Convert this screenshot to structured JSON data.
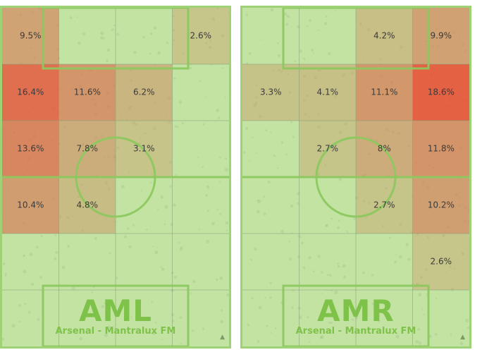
{
  "chart_data": [
    {
      "type": "heatmap",
      "title": "AML",
      "subtitle": "Arsenal - Mantralux FM",
      "columns": 4,
      "rows": 6,
      "cells": [
        {
          "row": 0,
          "col": 0,
          "value": 9.5,
          "label": "9.5%"
        },
        {
          "row": 0,
          "col": 1,
          "value": 0,
          "label": ""
        },
        {
          "row": 0,
          "col": 2,
          "value": 0,
          "label": ""
        },
        {
          "row": 0,
          "col": 3,
          "value": 2.6,
          "label": "2.6%"
        },
        {
          "row": 1,
          "col": 0,
          "value": 16.4,
          "label": "16.4%"
        },
        {
          "row": 1,
          "col": 1,
          "value": 11.6,
          "label": "11.6%"
        },
        {
          "row": 1,
          "col": 2,
          "value": 6.2,
          "label": "6.2%"
        },
        {
          "row": 1,
          "col": 3,
          "value": 0,
          "label": ""
        },
        {
          "row": 2,
          "col": 0,
          "value": 13.6,
          "label": "13.6%"
        },
        {
          "row": 2,
          "col": 1,
          "value": 7.8,
          "label": "7.8%"
        },
        {
          "row": 2,
          "col": 2,
          "value": 3.1,
          "label": "3.1%"
        },
        {
          "row": 2,
          "col": 3,
          "value": 0,
          "label": ""
        },
        {
          "row": 3,
          "col": 0,
          "value": 10.4,
          "label": "10.4%"
        },
        {
          "row": 3,
          "col": 1,
          "value": 4.8,
          "label": "4.8%"
        },
        {
          "row": 3,
          "col": 2,
          "value": 0,
          "label": ""
        },
        {
          "row": 3,
          "col": 3,
          "value": 0,
          "label": ""
        },
        {
          "row": 4,
          "col": 0,
          "value": 0,
          "label": ""
        },
        {
          "row": 4,
          "col": 1,
          "value": 0,
          "label": ""
        },
        {
          "row": 4,
          "col": 2,
          "value": 0,
          "label": ""
        },
        {
          "row": 4,
          "col": 3,
          "value": 0,
          "label": ""
        },
        {
          "row": 5,
          "col": 0,
          "value": 0,
          "label": ""
        },
        {
          "row": 5,
          "col": 1,
          "value": 0,
          "label": ""
        },
        {
          "row": 5,
          "col": 2,
          "value": 0,
          "label": ""
        },
        {
          "row": 5,
          "col": 3,
          "value": 0,
          "label": ""
        }
      ]
    },
    {
      "type": "heatmap",
      "title": "AMR",
      "subtitle": "Arsenal - Mantralux FM",
      "columns": 4,
      "rows": 6,
      "cells": [
        {
          "row": 0,
          "col": 0,
          "value": 0,
          "label": ""
        },
        {
          "row": 0,
          "col": 1,
          "value": 0,
          "label": ""
        },
        {
          "row": 0,
          "col": 2,
          "value": 4.2,
          "label": "4.2%"
        },
        {
          "row": 0,
          "col": 3,
          "value": 9.9,
          "label": "9.9%"
        },
        {
          "row": 1,
          "col": 0,
          "value": 3.3,
          "label": "3.3%"
        },
        {
          "row": 1,
          "col": 1,
          "value": 4.1,
          "label": "4.1%"
        },
        {
          "row": 1,
          "col": 2,
          "value": 11.1,
          "label": "11.1%"
        },
        {
          "row": 1,
          "col": 3,
          "value": 18.6,
          "label": "18.6%"
        },
        {
          "row": 2,
          "col": 0,
          "value": 0,
          "label": ""
        },
        {
          "row": 2,
          "col": 1,
          "value": 2.7,
          "label": "2.7%"
        },
        {
          "row": 2,
          "col": 2,
          "value": 8,
          "label": "8%"
        },
        {
          "row": 2,
          "col": 3,
          "value": 11.8,
          "label": "11.8%"
        },
        {
          "row": 3,
          "col": 0,
          "value": 0,
          "label": ""
        },
        {
          "row": 3,
          "col": 1,
          "value": 0,
          "label": ""
        },
        {
          "row": 3,
          "col": 2,
          "value": 2.7,
          "label": "2.7%"
        },
        {
          "row": 3,
          "col": 3,
          "value": 10.2,
          "label": "10.2%"
        },
        {
          "row": 4,
          "col": 0,
          "value": 0,
          "label": ""
        },
        {
          "row": 4,
          "col": 1,
          "value": 0,
          "label": ""
        },
        {
          "row": 4,
          "col": 2,
          "value": 0,
          "label": ""
        },
        {
          "row": 4,
          "col": 3,
          "value": 2.6,
          "label": "2.6%"
        },
        {
          "row": 5,
          "col": 0,
          "value": 0,
          "label": ""
        },
        {
          "row": 5,
          "col": 1,
          "value": 0,
          "label": ""
        },
        {
          "row": 5,
          "col": 2,
          "value": 0,
          "label": ""
        },
        {
          "row": 5,
          "col": 3,
          "value": 0,
          "label": ""
        }
      ]
    }
  ],
  "colors": {
    "pitch": "#c3e3a3",
    "lines": "#8cc85f",
    "low": "#c6a46a",
    "mid": "#d4805a",
    "high": "#e8523a"
  },
  "icons": {
    "corner": "triangle-icon"
  }
}
